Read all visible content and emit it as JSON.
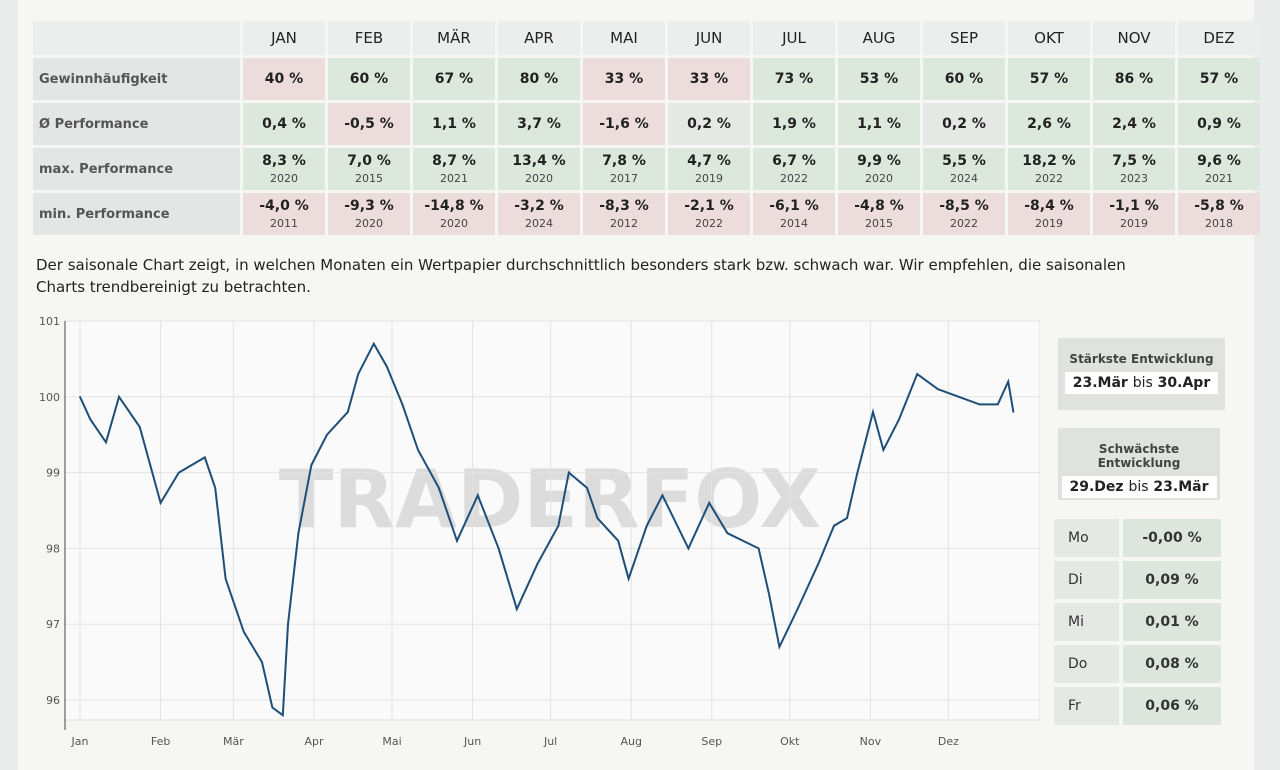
{
  "table": {
    "months": [
      "JAN",
      "FEB",
      "MÄR",
      "APR",
      "MAI",
      "JUN",
      "JUL",
      "AUG",
      "SEP",
      "OKT",
      "NOV",
      "DEZ"
    ],
    "rows": [
      {
        "label": "Gewinnhäufigkeit",
        "values": [
          "40 %",
          "60 %",
          "67 %",
          "80 %",
          "33 %",
          "33 %",
          "73 %",
          "53 %",
          "60 %",
          "57 %",
          "86 %",
          "57 %"
        ]
      },
      {
        "label": "Ø Performance",
        "values": [
          "0,4 %",
          "-0,5 %",
          "1,1 %",
          "3,7 %",
          "-1,6 %",
          "0,2 %",
          "1,9 %",
          "1,1 %",
          "0,2 %",
          "2,6 %",
          "2,4 %",
          "0,9 %"
        ]
      },
      {
        "label": "max. Performance",
        "values": [
          "8,3 %",
          "7,0 %",
          "8,7 %",
          "13,4 %",
          "7,8 %",
          "4,7 %",
          "6,7 %",
          "9,9 %",
          "5,5 %",
          "18,2 %",
          "7,5 %",
          "9,6 %"
        ],
        "years": [
          "2020",
          "2015",
          "2021",
          "2020",
          "2017",
          "2019",
          "2022",
          "2020",
          "2024",
          "2022",
          "2023",
          "2021"
        ]
      },
      {
        "label": "min. Performance",
        "values": [
          "-4,0 %",
          "-9,3 %",
          "-14,8 %",
          "-3,2 %",
          "-8,3 %",
          "-2,1 %",
          "-6,1 %",
          "-4,8 %",
          "-8,5 %",
          "-8,4 %",
          "-1,1 %",
          "-5,8 %"
        ],
        "years": [
          "2011",
          "2020",
          "2020",
          "2024",
          "2012",
          "2022",
          "2014",
          "2015",
          "2022",
          "2019",
          "2019",
          "2018"
        ]
      }
    ]
  },
  "description": "Der saisonale Chart zeigt, in welchen Monaten ein Wertpapier durchschnittlich besonders stark bzw. schwach war. Wir empfehlen, die saisonalen Charts trendbereinigt zu betrachten.",
  "strongest": {
    "title": "Stärkste Entwicklung",
    "from": "23.Mär",
    "sep": "bis",
    "to": "30.Apr"
  },
  "weakest": {
    "title": "Schwächste Entwicklung",
    "from": "29.Dez",
    "sep": "bis",
    "to": "23.Mär"
  },
  "weekdays": [
    {
      "day": "Mo",
      "value": "-0,00 %"
    },
    {
      "day": "Di",
      "value": "0,09 %"
    },
    {
      "day": "Mi",
      "value": "0,01 %"
    },
    {
      "day": "Do",
      "value": "0,08 %"
    },
    {
      "day": "Fr",
      "value": "0,06 %"
    }
  ],
  "watermark": "TRADERFOX",
  "chart_data": {
    "type": "line",
    "grid": true,
    "line_color": "#1f4e79",
    "ylim": [
      96,
      101
    ],
    "yticks": [
      96,
      97,
      98,
      99,
      100,
      101
    ],
    "xticks": [
      "Jan",
      "Feb",
      "Mär",
      "Apr",
      "Mai",
      "Jun",
      "Jul",
      "Aug",
      "Sep",
      "Okt",
      "Nov",
      "Dez"
    ],
    "x": [
      "01.01",
      "05.01",
      "11.01",
      "16.01",
      "24.01",
      "01.02",
      "08.02",
      "18.02",
      "22.02",
      "26.02",
      "05.03",
      "12.03",
      "16.03",
      "20.03",
      "22.03",
      "26.03",
      "31.03",
      "06.04",
      "14.04",
      "18.04",
      "24.04",
      "29.04",
      "05.05",
      "11.05",
      "19.05",
      "26.05",
      "03.06",
      "11.06",
      "18.06",
      "26.06",
      "04.07",
      "08.07",
      "15.07",
      "19.07",
      "27.07",
      "31.07",
      "07.08",
      "13.08",
      "23.08",
      "31.08",
      "07.09",
      "19.09",
      "23.09",
      "27.09",
      "04.10",
      "12.10",
      "18.10",
      "23.10",
      "27.10",
      "02.11",
      "06.11",
      "12.11",
      "19.11",
      "27.11",
      "05.12",
      "13.12",
      "20.12",
      "24.12",
      "26.12"
    ],
    "values": [
      100.0,
      99.7,
      99.4,
      100.0,
      99.6,
      98.6,
      99.0,
      99.2,
      98.8,
      97.6,
      96.9,
      96.5,
      95.9,
      95.8,
      97.0,
      98.2,
      99.1,
      99.5,
      99.8,
      100.3,
      100.7,
      100.4,
      99.9,
      99.3,
      98.8,
      98.1,
      98.7,
      98.0,
      97.2,
      97.8,
      98.3,
      99.0,
      98.8,
      98.4,
      98.1,
      97.6,
      98.3,
      98.7,
      98.0,
      98.6,
      98.2,
      98.0,
      97.4,
      96.7,
      97.2,
      97.8,
      98.3,
      98.4,
      99.0,
      99.8,
      99.3,
      99.7,
      100.3,
      100.1,
      100.0,
      99.9,
      99.9,
      100.2,
      99.8
    ]
  }
}
